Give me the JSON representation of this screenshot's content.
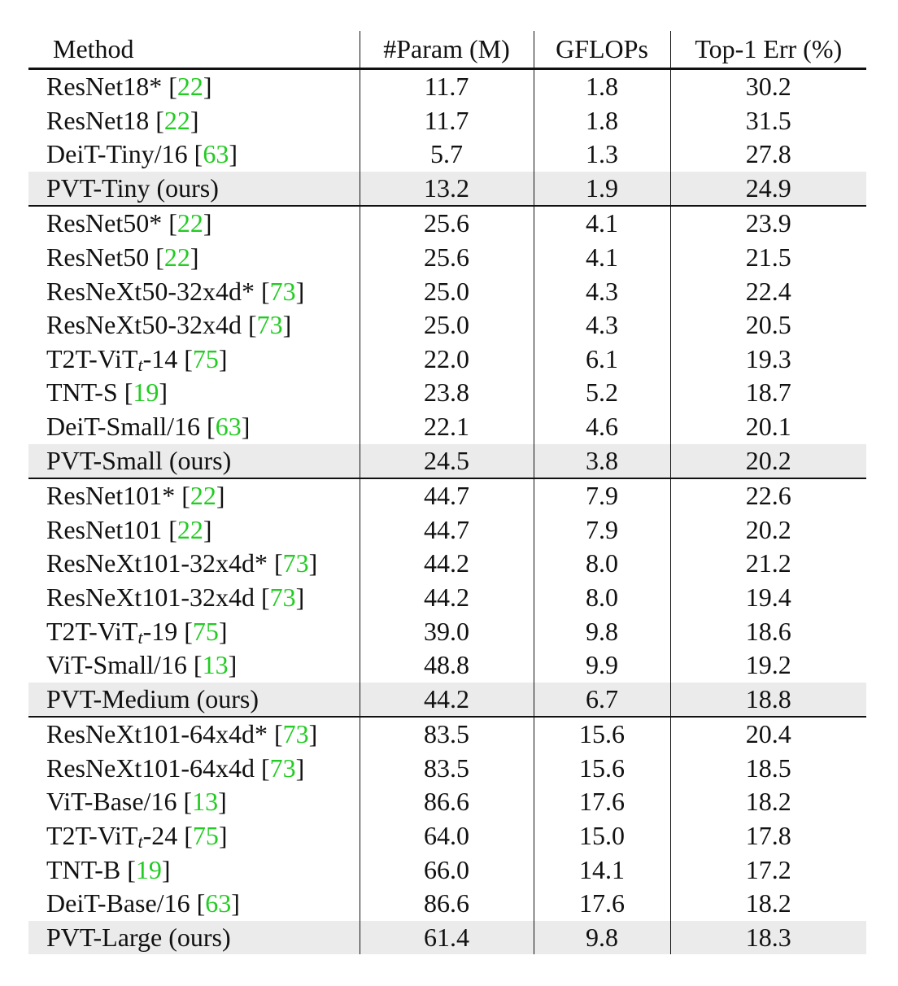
{
  "colors": {
    "citation": "#22cc22",
    "highlight_row": "#ebebeb",
    "rule": "#111111"
  },
  "header": {
    "method": "Method",
    "param": "#Param (M)",
    "gflops": "GFLOPs",
    "top1": "Top-1 Err (%)"
  },
  "groups": [
    {
      "rows": [
        {
          "name": "ResNet18*",
          "ref": "22",
          "param": "11.7",
          "gflops": "1.8",
          "top1": "30.2",
          "ours": false
        },
        {
          "name": "ResNet18",
          "ref": "22",
          "param": "11.7",
          "gflops": "1.8",
          "top1": "31.5",
          "ours": false
        },
        {
          "name": "DeiT-Tiny/16",
          "ref": "63",
          "param": "5.7",
          "gflops": "1.3",
          "top1": "27.8",
          "ours": false
        },
        {
          "name": "PVT-Tiny (ours)",
          "ref": "",
          "param": "13.2",
          "gflops": "1.9",
          "top1": "24.9",
          "ours": true
        }
      ]
    },
    {
      "rows": [
        {
          "name": "ResNet50*",
          "ref": "22",
          "param": "25.6",
          "gflops": "4.1",
          "top1": "23.9",
          "ours": false
        },
        {
          "name": "ResNet50",
          "ref": "22",
          "param": "25.6",
          "gflops": "4.1",
          "top1": "21.5",
          "ours": false
        },
        {
          "name": "ResNeXt50-32x4d*",
          "ref": "73",
          "param": "25.0",
          "gflops": "4.3",
          "top1": "22.4",
          "ours": false
        },
        {
          "name": "ResNeXt50-32x4d",
          "ref": "73",
          "param": "25.0",
          "gflops": "4.3",
          "top1": "20.5",
          "ours": false
        },
        {
          "name": "T2T-ViT",
          "sub": "t",
          "suffix": "-14",
          "ref": "75",
          "param": "22.0",
          "gflops": "6.1",
          "top1": "19.3",
          "ours": false
        },
        {
          "name": "TNT-S",
          "ref": "19",
          "param": "23.8",
          "gflops": "5.2",
          "top1": "18.7",
          "ours": false
        },
        {
          "name": "DeiT-Small/16",
          "ref": "63",
          "param": "22.1",
          "gflops": "4.6",
          "top1": "20.1",
          "ours": false
        },
        {
          "name": "PVT-Small (ours)",
          "ref": "",
          "param": "24.5",
          "gflops": "3.8",
          "top1": "20.2",
          "ours": true
        }
      ]
    },
    {
      "rows": [
        {
          "name": "ResNet101*",
          "ref": "22",
          "param": "44.7",
          "gflops": "7.9",
          "top1": "22.6",
          "ours": false
        },
        {
          "name": "ResNet101",
          "ref": "22",
          "param": "44.7",
          "gflops": "7.9",
          "top1": "20.2",
          "ours": false
        },
        {
          "name": "ResNeXt101-32x4d*",
          "ref": "73",
          "param": "44.2",
          "gflops": "8.0",
          "top1": "21.2",
          "ours": false
        },
        {
          "name": "ResNeXt101-32x4d",
          "ref": "73",
          "param": "44.2",
          "gflops": "8.0",
          "top1": "19.4",
          "ours": false
        },
        {
          "name": "T2T-ViT",
          "sub": "t",
          "suffix": "-19",
          "ref": "75",
          "param": "39.0",
          "gflops": "9.8",
          "top1": "18.6",
          "ours": false
        },
        {
          "name": "ViT-Small/16",
          "ref": "13",
          "param": "48.8",
          "gflops": "9.9",
          "top1": "19.2",
          "ours": false
        },
        {
          "name": "PVT-Medium (ours)",
          "ref": "",
          "param": "44.2",
          "gflops": "6.7",
          "top1": "18.8",
          "ours": true
        }
      ]
    },
    {
      "rows": [
        {
          "name": "ResNeXt101-64x4d*",
          "ref": "73",
          "param": "83.5",
          "gflops": "15.6",
          "top1": "20.4",
          "ours": false
        },
        {
          "name": "ResNeXt101-64x4d",
          "ref": "73",
          "param": "83.5",
          "gflops": "15.6",
          "top1": "18.5",
          "ours": false
        },
        {
          "name": "ViT-Base/16",
          "ref": "13",
          "param": "86.6",
          "gflops": "17.6",
          "top1": "18.2",
          "ours": false
        },
        {
          "name": "T2T-ViT",
          "sub": "t",
          "suffix": "-24",
          "ref": "75",
          "param": "64.0",
          "gflops": "15.0",
          "top1": "17.8",
          "ours": false
        },
        {
          "name": "TNT-B",
          "ref": "19",
          "param": "66.0",
          "gflops": "14.1",
          "top1": "17.2",
          "ours": false
        },
        {
          "name": "DeiT-Base/16",
          "ref": "63",
          "param": "86.6",
          "gflops": "17.6",
          "top1": "18.2",
          "ours": false
        },
        {
          "name": "PVT-Large (ours)",
          "ref": "",
          "param": "61.4",
          "gflops": "9.8",
          "top1": "18.3",
          "ours": true
        }
      ]
    }
  ]
}
